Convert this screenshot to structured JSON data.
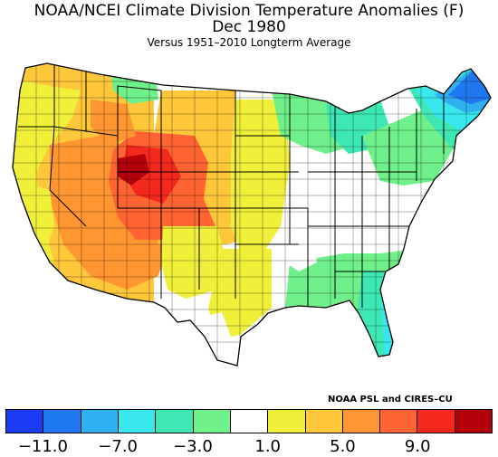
{
  "title": "NOAA/NCEI Climate Division Temperature Anomalies (F)",
  "subtitle": "Dec 1980",
  "note": "Versus 1951–2010 Longterm Average",
  "credit": "NOAA PSL and CIRES–CU",
  "colorbar": {
    "colors": [
      "#1a3cf5",
      "#1f78f0",
      "#2fb0f0",
      "#38e8ee",
      "#3ee8b4",
      "#6ff08a",
      "#ffffff",
      "#f0f03a",
      "#ffc83a",
      "#ff9632",
      "#ff6432",
      "#f5281e",
      "#b4000a"
    ],
    "tick_labels": [
      "−11.0",
      "−7.0",
      "−3.0",
      "1.0",
      "5.0",
      "9.0"
    ],
    "tick_positions": [
      1,
      3,
      5,
      7,
      9,
      11
    ]
  }
}
